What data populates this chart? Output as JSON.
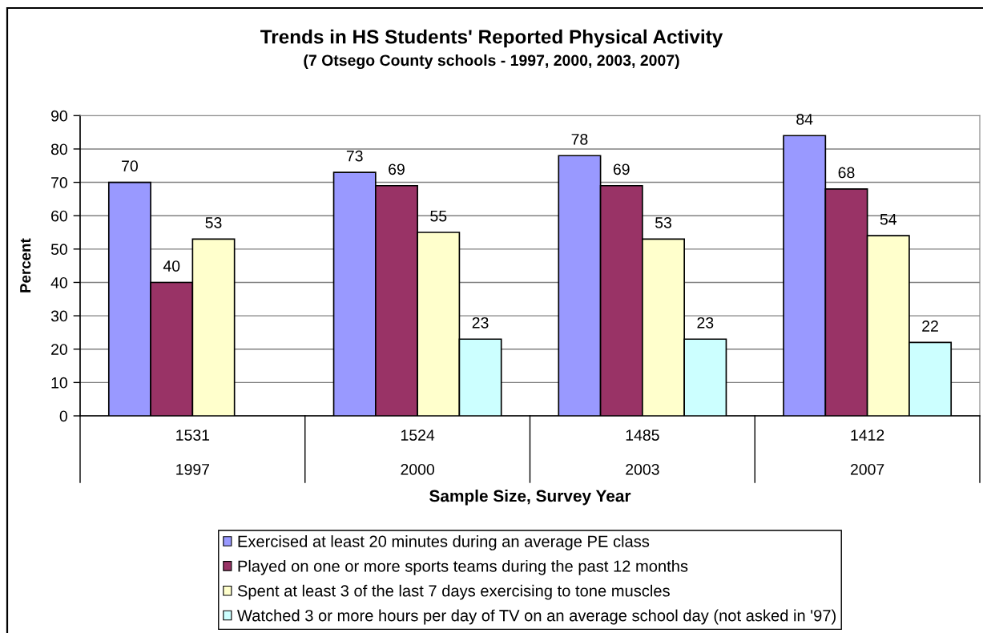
{
  "chart_data": {
    "type": "bar",
    "title": "Trends in HS Students' Reported Physical Activity",
    "subtitle": "(7 Otsego County schools - 1997, 2000, 2003, 2007)",
    "xlabel": "Sample Size, Survey Year",
    "ylabel": "Percent",
    "categories": [
      "1531\n1997",
      "1524\n2000",
      "1485\n2003",
      "1412\n2007"
    ],
    "series": [
      {
        "name": "Exercised at least 20 minutes during an average PE class",
        "color": "#9999ff",
        "values": [
          70,
          73,
          78,
          84
        ]
      },
      {
        "name": "Played on one or more sports teams during the past 12 months",
        "color": "#993366",
        "values": [
          40,
          69,
          69,
          68
        ]
      },
      {
        "name": "Spent at least 3 of the last 7 days exercising to tone muscles",
        "color": "#ffffcc",
        "values": [
          53,
          55,
          53,
          54
        ]
      },
      {
        "name": "Watched 3 or more hours per day of TV on an average school day (not asked in '97)",
        "color": "#ccffff",
        "values": [
          null,
          23,
          23,
          22
        ]
      }
    ],
    "ylim": [
      0,
      90
    ],
    "yticks": [
      0,
      10,
      20,
      30,
      40,
      50,
      60,
      70,
      80,
      90
    ],
    "grid": "y",
    "legend": "bottom",
    "data_labels": true
  }
}
